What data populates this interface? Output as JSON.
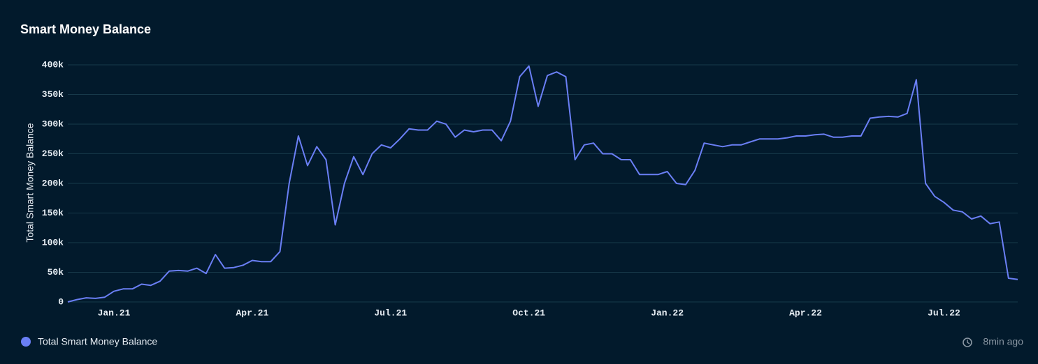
{
  "chart_data": {
    "type": "line",
    "title": "Smart Money Balance",
    "y_label": "Total Smart Money Balance",
    "updated": "8min ago",
    "categories": [
      null,
      null,
      null,
      null,
      null,
      "Jan.21",
      null,
      null,
      null,
      null,
      null,
      null,
      null,
      null,
      null,
      null,
      null,
      null,
      null,
      null,
      "Apr.21",
      null,
      null,
      null,
      null,
      null,
      null,
      null,
      null,
      null,
      null,
      null,
      null,
      null,
      null,
      "Jul.21",
      null,
      null,
      null,
      null,
      null,
      null,
      null,
      null,
      null,
      null,
      null,
      null,
      null,
      null,
      "Oct.21",
      null,
      null,
      null,
      null,
      null,
      null,
      null,
      null,
      null,
      null,
      null,
      null,
      null,
      null,
      "Jan.22",
      null,
      null,
      null,
      null,
      null,
      null,
      null,
      null,
      null,
      null,
      null,
      null,
      null,
      null,
      "Apr.22",
      null,
      null,
      null,
      null,
      null,
      null,
      null,
      null,
      null,
      null,
      null,
      null,
      null,
      null,
      "Jul.22",
      null,
      null,
      null,
      null,
      null,
      null,
      null,
      null
    ],
    "series": [
      {
        "name": "Total Smart Money Balance",
        "color": "#6a7ff5",
        "values": [
          0,
          4000,
          7000,
          6000,
          8000,
          18000,
          22000,
          22000,
          30000,
          28000,
          35000,
          52000,
          53000,
          52000,
          57000,
          48000,
          80000,
          57000,
          58000,
          62000,
          70000,
          68000,
          68000,
          85000,
          200000,
          280000,
          230000,
          262000,
          240000,
          130000,
          200000,
          245000,
          215000,
          250000,
          265000,
          260000,
          275000,
          292000,
          290000,
          290000,
          305000,
          300000,
          278000,
          290000,
          287000,
          290000,
          290000,
          272000,
          305000,
          380000,
          398000,
          330000,
          382000,
          388000,
          380000,
          240000,
          265000,
          268000,
          250000,
          250000,
          240000,
          240000,
          215000,
          215000,
          215000,
          220000,
          200000,
          198000,
          222000,
          268000,
          265000,
          262000,
          265000,
          265000,
          270000,
          275000,
          275000,
          275000,
          277000,
          280000,
          280000,
          282000,
          283000,
          278000,
          278000,
          280000,
          280000,
          310000,
          312000,
          313000,
          312000,
          318000,
          375000,
          200000,
          178000,
          168000,
          155000,
          152000,
          140000,
          145000,
          132000,
          135000,
          40000,
          38000
        ]
      }
    ],
    "ylim": [
      0,
      400000
    ],
    "yticks": [
      0,
      {
        "value": 50000,
        "label": "50k"
      },
      {
        "value": 100000,
        "label": "100k"
      },
      {
        "value": 150000,
        "label": "150k"
      },
      {
        "value": 200000,
        "label": "200k"
      },
      {
        "value": 250000,
        "label": "250k"
      },
      {
        "value": 300000,
        "label": "300k"
      },
      {
        "value": 350000,
        "label": "350k"
      },
      {
        "value": 400000,
        "label": "400k"
      }
    ],
    "grid": true
  }
}
